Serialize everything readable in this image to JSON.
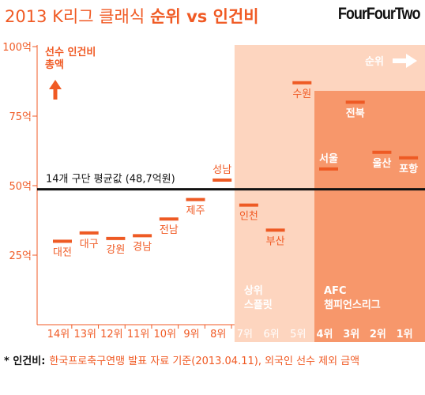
{
  "logo": "FourFourTwo",
  "footnote": {
    "marker": "* 인건비:",
    "text": "한국프로축구연맹 발표 자료 기준(2013.04.11), 외국인 선수 제외 금액"
  },
  "colors": {
    "accent": "#f05a24",
    "marker": "#ee5a24",
    "split_region": "#fdd5bf",
    "acl_region": "#f7976b",
    "average_line": "#111111",
    "on_region_text": "#ffffff"
  },
  "icons": {
    "ylabel_arrow": "up-arrow-icon",
    "rank_arrow": "right-arrow-icon"
  },
  "chart_data": {
    "type": "scatter",
    "title": {
      "regular": "2013 K리그 클래식",
      "bold": "순위 vs 인건비"
    },
    "categories": [
      "14위",
      "13위",
      "12위",
      "11위",
      "10위",
      "9위",
      "8위",
      "7위",
      "6위",
      "5위",
      "4위",
      "3위",
      "2위",
      "1위"
    ],
    "series": [
      {
        "values": [
          30,
          33,
          31,
          32,
          38,
          45,
          52,
          43,
          34,
          87,
          56,
          80,
          62,
          60
        ],
        "point_labels": [
          "대전",
          "대구",
          "강원",
          "경남",
          "전남",
          "제주",
          "성남",
          "인천",
          "부산",
          "수원",
          "서울",
          "전북",
          "울산",
          "포항"
        ]
      }
    ],
    "ylabel": [
      "선수 인건비",
      "총액"
    ],
    "xlabel": "순위",
    "yticks": [
      {
        "value": 100,
        "label": "100억"
      },
      {
        "value": 75,
        "label": "75억"
      },
      {
        "value": 50,
        "label": "50억"
      },
      {
        "value": 25,
        "label": "25억"
      }
    ],
    "ylim": [
      0,
      100
    ],
    "reference_line": {
      "value": 48.7,
      "label": "14개 구단 평균값 (48,7억원)"
    },
    "regions": [
      {
        "label": [
          "상위",
          "스플릿"
        ],
        "ranks": [
          1,
          7
        ]
      },
      {
        "label": [
          "AFC",
          "챔피언스리그"
        ],
        "ranks": [
          1,
          4
        ]
      }
    ],
    "grid": false
  }
}
